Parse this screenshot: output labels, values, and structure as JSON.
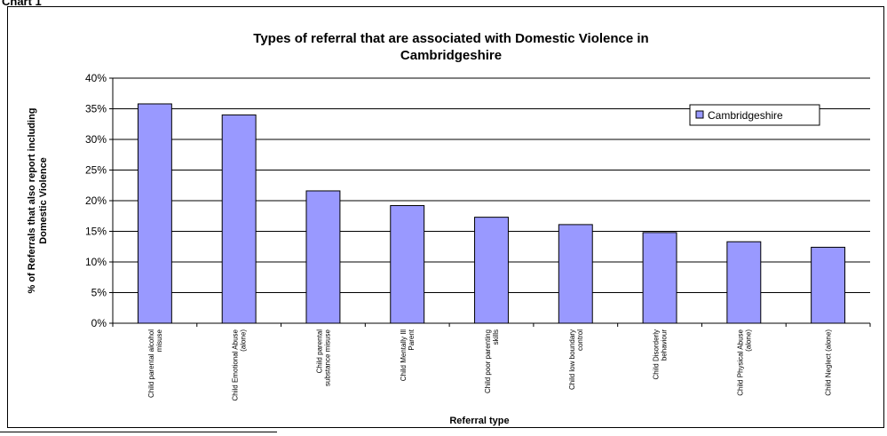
{
  "page": {
    "caption": "Chart 1"
  },
  "chart_data": {
    "type": "bar",
    "title_lines": [
      "Types of referral that are associated with Domestic Violence in",
      "Cambridgeshire"
    ],
    "ylabel_lines": [
      "% of Referrals that also report including",
      "Domestic Violence"
    ],
    "xlabel": "Referral type",
    "ylim": [
      0,
      0.4
    ],
    "y_tick_values": [
      0,
      0.05,
      0.1,
      0.15,
      0.2,
      0.25,
      0.3,
      0.35,
      0.4
    ],
    "y_tick_labels": [
      "0%",
      "5%",
      "10%",
      "15%",
      "20%",
      "25%",
      "30%",
      "35%",
      "40%"
    ],
    "grid": true,
    "legend_position": "top-right",
    "categories": [
      [
        "Child parental alcohol",
        "misuse"
      ],
      [
        "Child Emotional Abuse",
        "(alone)"
      ],
      [
        "Child parental",
        "substance misuse"
      ],
      [
        "Child Mentally Ill",
        "Parent"
      ],
      [
        "Child poor parenting",
        "skills"
      ],
      [
        "Child low boundary",
        "control"
      ],
      [
        "Child Disorderly",
        "behaviour"
      ],
      [
        "Child Physical Abuse",
        "(alone)"
      ],
      [
        "Child Neglect (alone)"
      ]
    ],
    "series": [
      {
        "name": "Cambridgeshire",
        "color": "#9999ff",
        "values": [
          0.358,
          0.34,
          0.216,
          0.192,
          0.173,
          0.161,
          0.148,
          0.133,
          0.124
        ]
      }
    ]
  }
}
